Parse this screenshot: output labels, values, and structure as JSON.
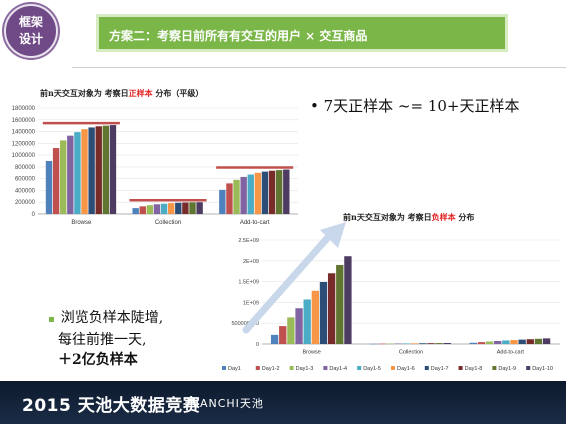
{
  "badge": {
    "line1": "框架",
    "line2": "设计"
  },
  "banner": {
    "title": "方案二：考察日前所有有交互的用户 × 交互商品"
  },
  "chart1": {
    "title_pre": "前n天交互对象为 考察日",
    "title_red": "正样本",
    "title_post": " 分布（平级）"
  },
  "chart2": {
    "title_pre": "前n天交互对象为 考察日",
    "title_red": "负样本",
    "title_post": " 分布"
  },
  "note_right": "• 7天正样本 ~= 10+天正样本",
  "note_left": {
    "bullet": "▪",
    "line1": "浏览负样本陡增,",
    "line2": "每往前推一天,",
    "line3": "＋2亿负样本"
  },
  "footer": {
    "text": "2015 天池大数据竞赛",
    "logo": "TIANCHI天池"
  },
  "colors": {
    "banner": "#7ab648",
    "badge": "#6f4a86",
    "highlight": "#c0504d"
  },
  "chart_data": [
    {
      "type": "bar",
      "title": "前n天交互对象为 考察日正样本 分布（平级）",
      "categories": [
        "Browse",
        "Collection",
        "Add-to-cart"
      ],
      "ylim": [
        0,
        1800000
      ],
      "yticks": [
        "0",
        "200000",
        "400000",
        "600000",
        "800000",
        "1000000",
        "1200000",
        "1400000",
        "1600000",
        "1800000"
      ],
      "series": [
        {
          "name": "Day1",
          "values": [
            900000,
            100000,
            410000
          ]
        },
        {
          "name": "Day1-2",
          "values": [
            1120000,
            130000,
            520000
          ]
        },
        {
          "name": "Day1-3",
          "values": [
            1250000,
            150000,
            580000
          ]
        },
        {
          "name": "Day1-4",
          "values": [
            1330000,
            165000,
            630000
          ]
        },
        {
          "name": "Day1-5",
          "values": [
            1390000,
            175000,
            670000
          ]
        },
        {
          "name": "Day1-6",
          "values": [
            1440000,
            185000,
            700000
          ]
        },
        {
          "name": "Day1-7",
          "values": [
            1470000,
            190000,
            720000
          ]
        },
        {
          "name": "Day1-8",
          "values": [
            1490000,
            195000,
            735000
          ]
        },
        {
          "name": "Day1-9",
          "values": [
            1500000,
            198000,
            745000
          ]
        },
        {
          "name": "Day1-10",
          "values": [
            1510000,
            200000,
            755000
          ]
        }
      ]
    },
    {
      "type": "bar",
      "title": "前n天交互对象为 考察日负样本 分布",
      "categories": [
        "Browse",
        "Collection",
        "Add-to-cart"
      ],
      "ylim": [
        0,
        2500000000
      ],
      "yticks": [
        "0",
        "500000000",
        "1E+09",
        "1.5E+09",
        "2E+09",
        "2.5E+09"
      ],
      "series": [
        {
          "name": "Day1",
          "values": [
            220000000,
            5000000,
            30000000
          ]
        },
        {
          "name": "Day1-2",
          "values": [
            430000000,
            8000000,
            45000000
          ]
        },
        {
          "name": "Day1-3",
          "values": [
            640000000,
            10000000,
            60000000
          ]
        },
        {
          "name": "Day1-4",
          "values": [
            860000000,
            12000000,
            72000000
          ]
        },
        {
          "name": "Day1-5",
          "values": [
            1070000000,
            14000000,
            85000000
          ]
        },
        {
          "name": "Day1-6",
          "values": [
            1280000000,
            16000000,
            95000000
          ]
        },
        {
          "name": "Day1-7",
          "values": [
            1490000000,
            18000000,
            105000000
          ]
        },
        {
          "name": "Day1-8",
          "values": [
            1700000000,
            20000000,
            115000000
          ]
        },
        {
          "name": "Day1-9",
          "values": [
            1900000000,
            22000000,
            125000000
          ]
        },
        {
          "name": "Day1-10",
          "values": [
            2110000000,
            24000000,
            135000000
          ]
        }
      ],
      "legend": "bottom"
    }
  ]
}
